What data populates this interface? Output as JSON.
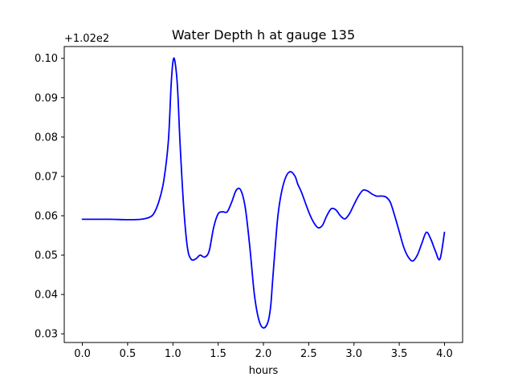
{
  "chart_data": {
    "type": "line",
    "title": "Water Depth h at gauge 135",
    "xlabel": "hours",
    "ylabel": "",
    "y_offset_label": "+1.02e2",
    "xlim": [
      -0.2,
      4.2
    ],
    "ylim": [
      0.0278,
      0.103
    ],
    "grid": false,
    "line_color": "#0000ff",
    "x_ticks": [
      0.0,
      0.5,
      1.0,
      1.5,
      2.0,
      2.5,
      3.0,
      3.5,
      4.0
    ],
    "x_tick_labels": [
      "0.0",
      "0.5",
      "1.0",
      "1.5",
      "2.0",
      "2.5",
      "3.0",
      "3.5",
      "4.0"
    ],
    "y_ticks": [
      0.03,
      0.04,
      0.05,
      0.06,
      0.07,
      0.08,
      0.09,
      0.1
    ],
    "y_tick_labels": [
      "0.03",
      "0.04",
      "0.05",
      "0.06",
      "0.07",
      "0.08",
      "0.09",
      "0.10"
    ],
    "series": [
      {
        "x": [
          0.0,
          0.3,
          0.5,
          0.65,
          0.75,
          0.8,
          0.85,
          0.9,
          0.95,
          0.98,
          1.0,
          1.02,
          1.05,
          1.08,
          1.12,
          1.16,
          1.2,
          1.25,
          1.3,
          1.35,
          1.4,
          1.45,
          1.5,
          1.55,
          1.6,
          1.65,
          1.7,
          1.75,
          1.8,
          1.85,
          1.9,
          1.95,
          2.0,
          2.05,
          2.08,
          2.1,
          2.13,
          2.16,
          2.2,
          2.25,
          2.3,
          2.35,
          2.38,
          2.42,
          2.5,
          2.55,
          2.6,
          2.65,
          2.7,
          2.75,
          2.8,
          2.85,
          2.9,
          2.95,
          3.0,
          3.05,
          3.1,
          3.15,
          3.2,
          3.25,
          3.3,
          3.35,
          3.4,
          3.45,
          3.5,
          3.55,
          3.6,
          3.65,
          3.7,
          3.75,
          3.8,
          3.85,
          3.9,
          3.95,
          4.0
        ],
        "values": [
          0.0591,
          0.0591,
          0.059,
          0.0591,
          0.0597,
          0.061,
          0.064,
          0.069,
          0.079,
          0.093,
          0.099,
          0.0995,
          0.093,
          0.078,
          0.062,
          0.052,
          0.049,
          0.049,
          0.05,
          0.0495,
          0.051,
          0.057,
          0.0605,
          0.061,
          0.061,
          0.0635,
          0.0665,
          0.0665,
          0.062,
          0.052,
          0.04,
          0.0335,
          0.0315,
          0.033,
          0.037,
          0.043,
          0.052,
          0.06,
          0.066,
          0.07,
          0.0712,
          0.07,
          0.068,
          0.066,
          0.061,
          0.0585,
          0.057,
          0.0575,
          0.06,
          0.0618,
          0.0615,
          0.06,
          0.0592,
          0.0605,
          0.0628,
          0.065,
          0.0665,
          0.0663,
          0.0655,
          0.065,
          0.065,
          0.0648,
          0.0635,
          0.06,
          0.056,
          0.052,
          0.0495,
          0.0485,
          0.05,
          0.053,
          0.0558,
          0.054,
          0.051,
          0.049,
          0.0558
        ]
      }
    ]
  }
}
